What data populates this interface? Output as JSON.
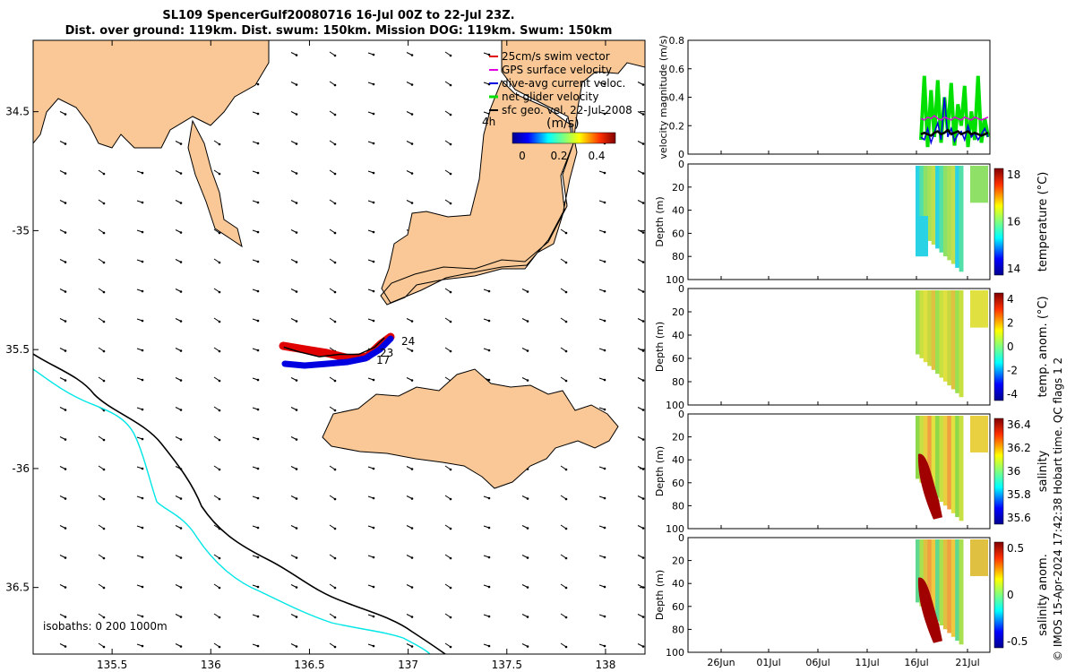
{
  "title": {
    "line1": "SL109 SpencerGulf20080716 16-Jul 00Z to 22-Jul 23Z.",
    "line2": "Dist. over ground: 119km. Dist. swum: 150km. Mission DOG: 119km. Swum: 150km"
  },
  "colors": {
    "land": "#f9c896",
    "coast": "#000000",
    "isobath_200": "#00e6e6",
    "swim": "#e00000",
    "gps": "#e000e0",
    "current": "#0000e0",
    "net": "#00e000"
  },
  "chart_data": [
    {
      "type": "map",
      "legend": {
        "items": [
          {
            "label": "25cm/s swim vector",
            "color": "#e00000"
          },
          {
            "label": "GPS surface velocity",
            "color": "#e000e0"
          },
          {
            "label": "dive-avg current veloc.",
            "color": "#0000e0"
          },
          {
            "label": "net glider velocity",
            "color": "#00e000"
          },
          {
            "label": "sfc geo. vel. 22-Jul-2008",
            "color": "#000000"
          }
        ],
        "extra": "4h",
        "placement": "top-right"
      },
      "colorbar": {
        "label": "(m/s)",
        "ticks": [
          "0",
          "0.2",
          "0.4"
        ],
        "range": [
          0,
          0.5
        ]
      },
      "x_range": [
        135.1,
        138.2
      ],
      "y_range": [
        -36.78,
        -34.2
      ],
      "x_ticks": [
        135.5,
        136,
        136.5,
        137,
        137.5,
        138
      ],
      "x_tick_labels": [
        "135.5",
        "136",
        "136.5",
        "137",
        "137.5",
        "138"
      ],
      "y_ticks": [
        -34.5,
        -35,
        -35.5,
        -36,
        -36.5
      ],
      "y_tick_labels": [
        "34.5",
        "-35",
        "35.5",
        "-36",
        "36.5"
      ],
      "track_labels": [
        "24",
        "23",
        "17"
      ],
      "isobath_note": "isobaths: 0   200  1000m",
      "track": [
        {
          "lon": 136.37,
          "lat": -35.49
        },
        {
          "lon": 136.45,
          "lat": -35.51
        },
        {
          "lon": 136.55,
          "lat": -35.53
        },
        {
          "lon": 136.65,
          "lat": -35.52
        },
        {
          "lon": 136.75,
          "lat": -35.52
        },
        {
          "lon": 136.83,
          "lat": -35.49
        },
        {
          "lon": 136.88,
          "lat": -35.45
        }
      ]
    },
    {
      "type": "line",
      "ylabel": "velocity magnitude (m/s)",
      "ylim": [
        0,
        0.8
      ],
      "y_ticks": [
        "0",
        "0.2",
        "0.4",
        "0.6",
        "0.8"
      ],
      "series": [
        {
          "color": "#00e000",
          "values": [
            0.1,
            0.55,
            0.05,
            0.45,
            0.12,
            0.52,
            0.08,
            0.4,
            0.15,
            0.5,
            0.06,
            0.35,
            0.2,
            0.48,
            0.05,
            0.3,
            0.1,
            0.55,
            0.08,
            0.25,
            0.12
          ]
        },
        {
          "color": "#0000e0",
          "values": [
            0.12,
            0.1,
            0.18,
            0.08,
            0.15,
            0.22,
            0.1,
            0.4,
            0.12,
            0.18,
            0.09,
            0.14,
            0.16,
            0.1,
            0.2,
            0.12,
            0.15,
            0.1,
            0.14,
            0.18,
            0.12
          ]
        },
        {
          "color": "#e000e0",
          "values": [
            0.25,
            0.24,
            0.26,
            0.25,
            0.27,
            0.25,
            0.24,
            0.26,
            0.25,
            0.24,
            0.26,
            0.25,
            0.24,
            0.26,
            0.25,
            0.24,
            0.26,
            0.25,
            0.24,
            0.25,
            0.26
          ]
        },
        {
          "color": "#000000",
          "values": [
            0.14,
            0.15,
            0.14,
            0.13,
            0.15,
            0.16,
            0.14,
            0.15,
            0.17,
            0.14,
            0.15,
            0.16,
            0.14,
            0.15,
            0.16,
            0.14,
            0.15,
            0.14,
            0.13,
            0.14,
            0.15
          ]
        }
      ]
    },
    {
      "type": "heatmap",
      "ylabel": "Depth (m)",
      "cbar_label": "temperature (°C)",
      "cbar_ticks": [
        "18",
        "16",
        "14"
      ],
      "palette": "temp"
    },
    {
      "type": "heatmap",
      "ylabel": "Depth (m)",
      "cbar_label": "temp. anom. (°C)",
      "cbar_ticks": [
        "4",
        "2",
        "0",
        "-2",
        "-4"
      ],
      "palette": "tanom"
    },
    {
      "type": "heatmap",
      "ylabel": "Depth (m)",
      "cbar_label": "salinity",
      "cbar_ticks": [
        "36.4",
        "36.2",
        "36",
        "35.8",
        "35.6"
      ],
      "palette": "sal"
    },
    {
      "type": "heatmap",
      "ylabel": "Depth (m)",
      "cbar_label": "salinity anom.",
      "cbar_ticks": [
        "0.5",
        "0",
        "-0.5"
      ],
      "palette": "sanom"
    }
  ],
  "time_axis": {
    "labels": [
      "26Jun",
      "01Jul",
      "06Jul",
      "11Jul",
      "16Jul",
      "21Jul"
    ],
    "depth_ticks": [
      "0",
      "20",
      "40",
      "60",
      "80",
      "100"
    ]
  },
  "credit": "© IMOS 15-Apr-2024 17:42:38 Hobart time. QC flags 1  2"
}
